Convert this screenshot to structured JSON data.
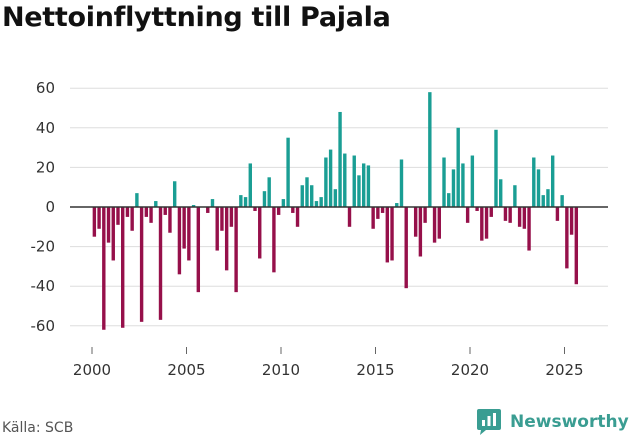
{
  "title": "Nettoinflyttning till Pajala",
  "source": "Källa: SCB",
  "brand": "Newsworthy",
  "colors": {
    "positive": "#1a9e94",
    "negative": "#96104a",
    "brand": "#3a9d92"
  },
  "chart_data": {
    "type": "bar",
    "title": "Nettoinflyttning till Pajala",
    "frequency": "quarterly",
    "xlabel": "",
    "ylabel": "",
    "ylim": [
      -70,
      65
    ],
    "xlim": [
      1999.0,
      2027.0
    ],
    "yticks": [
      60,
      40,
      20,
      0,
      -20,
      -40,
      -60
    ],
    "xticks": [
      2000,
      2005,
      2010,
      2015,
      2020,
      2025
    ],
    "start": 2000.0,
    "step": 0.25,
    "values": [
      -15,
      -11,
      -62,
      -18,
      -27,
      -9,
      -61,
      -5,
      -12,
      7,
      -58,
      -5,
      -8,
      3,
      -57,
      -4,
      -13,
      13,
      -34,
      -21,
      -27,
      1,
      -43,
      0,
      -3,
      4,
      -22,
      -12,
      -32,
      -10,
      -43,
      6,
      5,
      22,
      -2,
      -26,
      8,
      15,
      -33,
      -4,
      4,
      35,
      -3,
      -10,
      11,
      15,
      11,
      3,
      5,
      25,
      29,
      9,
      48,
      27,
      -10,
      26,
      16,
      22,
      21,
      -11,
      -6,
      -3,
      -28,
      -27,
      2,
      24,
      -41,
      0,
      -15,
      -25,
      -8,
      58,
      -18,
      -16,
      25,
      7,
      19,
      40,
      22,
      -8,
      26,
      -2,
      -17,
      -16,
      -5,
      39,
      14,
      -7,
      -8,
      11,
      -10,
      -11,
      -22,
      25,
      19,
      6,
      9,
      26,
      -7,
      6,
      -31,
      -14,
      -39
    ]
  }
}
